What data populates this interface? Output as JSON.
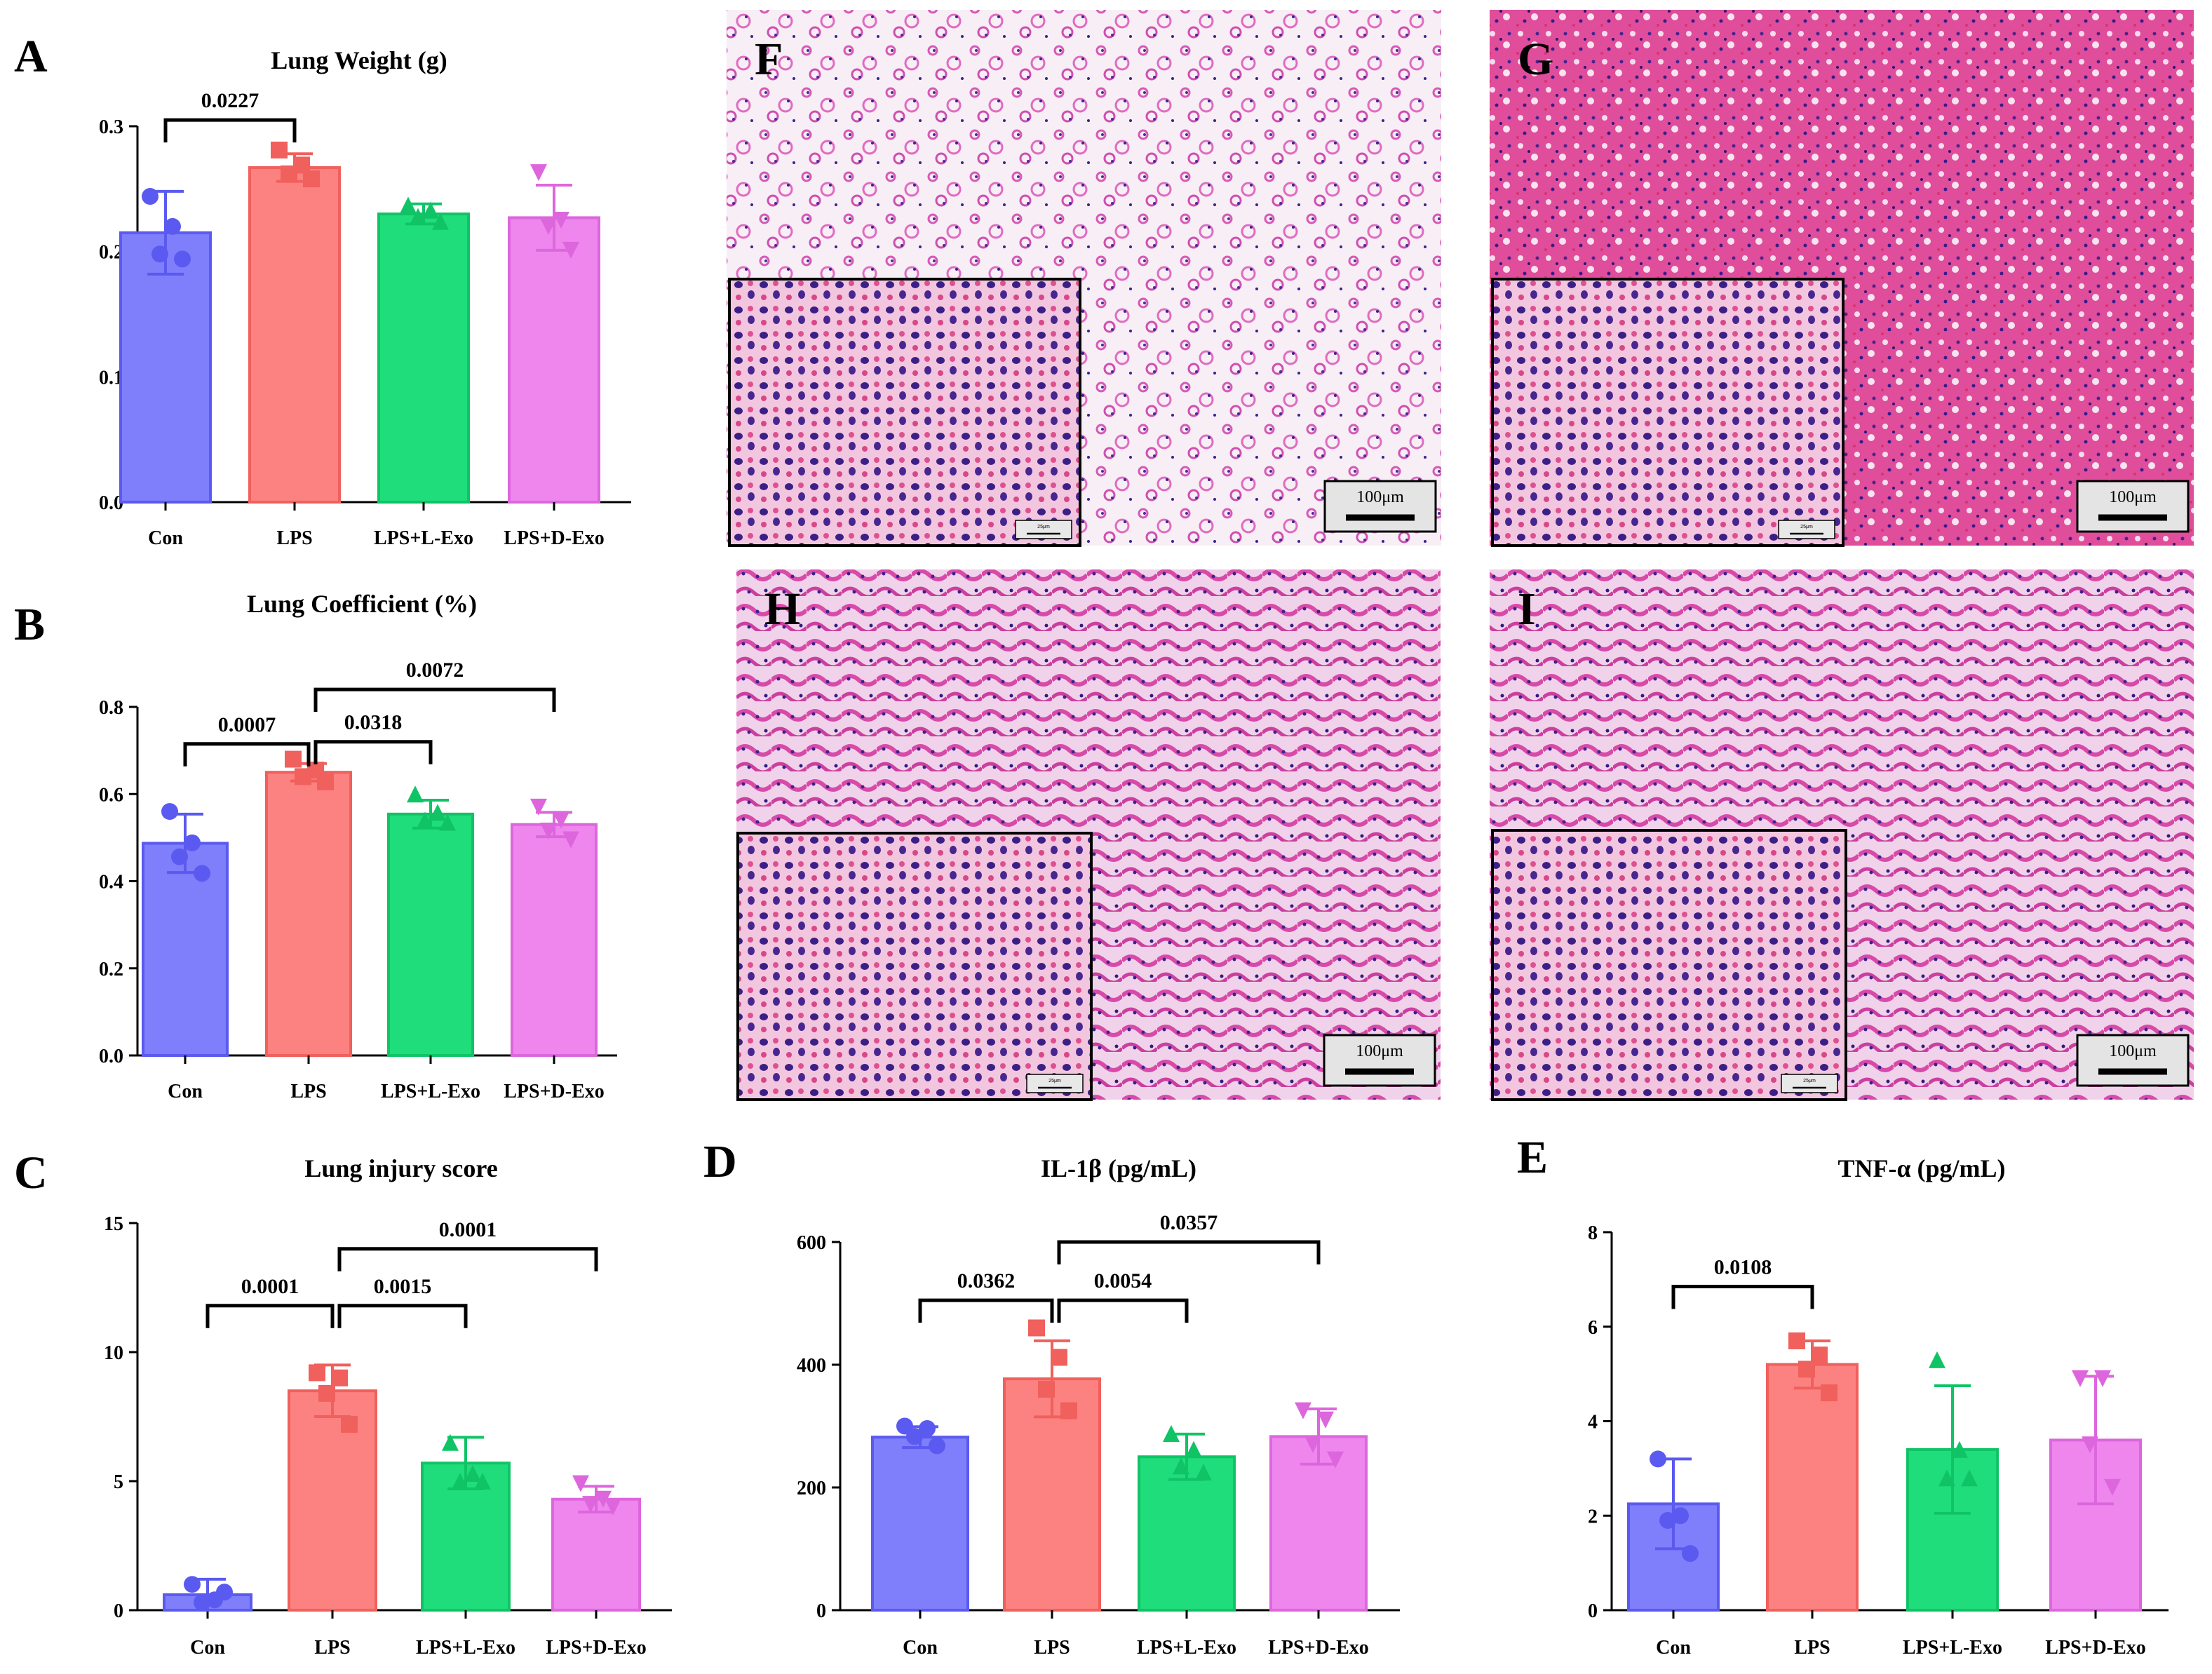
{
  "figure_labels": {
    "A": "A",
    "B": "B",
    "C": "C",
    "D": "D",
    "E": "E",
    "F": "F",
    "G": "G",
    "H": "H",
    "I": "I"
  },
  "colors": {
    "Con": {
      "fill": "#7f7ffb",
      "stroke": "#5a5af0"
    },
    "LPS": {
      "fill": "#fb8280",
      "stroke": "#f0605c"
    },
    "LPS+L-Exo": {
      "fill": "#20dd7c",
      "stroke": "#10c466"
    },
    "LPS+D-Exo": {
      "fill": "#ee86ee",
      "stroke": "#dd66dd"
    }
  },
  "micrographs": [
    {
      "label": "F",
      "scale_bar": "100μm",
      "inset_scale": "25μm",
      "tone": "light"
    },
    {
      "label": "G",
      "scale_bar": "100μm",
      "inset_scale": "25μm",
      "tone": "dense"
    },
    {
      "label": "H",
      "scale_bar": "100μm",
      "inset_scale": "25μm",
      "tone": "medium"
    },
    {
      "label": "I",
      "scale_bar": "100μm",
      "inset_scale": "25μm",
      "tone": "medium"
    }
  ],
  "chart_data": [
    {
      "id": "A",
      "type": "bar",
      "title": "Lung Weight (g)",
      "categories": [
        "Con",
        "LPS",
        "LPS+L-Exo",
        "LPS+D-Exo"
      ],
      "values": [
        0.215,
        0.267,
        0.23,
        0.227
      ],
      "sd": [
        0.033,
        0.011,
        0.008,
        0.026
      ],
      "points": [
        [
          0.244,
          0.22,
          0.198,
          0.194
        ],
        [
          0.281,
          0.269,
          0.262,
          0.258
        ],
        [
          0.237,
          0.233,
          0.228,
          0.224
        ],
        [
          0.263,
          0.225,
          0.22,
          0.201
        ]
      ],
      "markers": [
        "circle",
        "square",
        "triangle",
        "triangle-down"
      ],
      "ylim": [
        0,
        0.3
      ],
      "yticks": [
        "0.0",
        "0.1",
        "0.2",
        "0.3"
      ],
      "ytick_values": [
        0,
        0.1,
        0.2,
        0.3
      ],
      "significance": [
        {
          "from": 0,
          "to": 1,
          "label": "0.0227",
          "level": 0.305
        }
      ]
    },
    {
      "id": "B",
      "type": "bar",
      "title": "Lung Coefficient (%)",
      "categories": [
        "Con",
        "LPS",
        "LPS+L-Exo",
        "LPS+D-Exo"
      ],
      "values": [
        0.487,
        0.65,
        0.554,
        0.53
      ],
      "sd": [
        0.067,
        0.02,
        0.032,
        0.028
      ],
      "points": [
        [
          0.56,
          0.488,
          0.456,
          0.418
        ],
        [
          0.68,
          0.655,
          0.64,
          0.628
        ],
        [
          0.6,
          0.558,
          0.54,
          0.535
        ],
        [
          0.57,
          0.54,
          0.515,
          0.495
        ]
      ],
      "markers": [
        "circle",
        "square",
        "triangle",
        "triangle-down"
      ],
      "ylim": [
        0,
        0.8
      ],
      "yticks": [
        "0.0",
        "0.2",
        "0.4",
        "0.6",
        "0.8"
      ],
      "ytick_values": [
        0,
        0.2,
        0.4,
        0.6,
        0.8
      ],
      "significance": [
        {
          "from": 0,
          "to": 1,
          "label": "0.0007",
          "level": 0.715
        },
        {
          "from": 1,
          "to": 2,
          "label": "0.0318",
          "level": 0.72
        },
        {
          "from": 1,
          "to": 3,
          "label": "0.0072",
          "level": 0.84
        }
      ]
    },
    {
      "id": "C",
      "type": "bar",
      "title": "Lung injury score",
      "categories": [
        "Con",
        "LPS",
        "LPS+L-Exo",
        "LPS+D-Exo"
      ],
      "values": [
        0.6,
        8.5,
        5.7,
        4.3
      ],
      "sd": [
        0.6,
        1.0,
        1.0,
        0.5
      ],
      "points": [
        [
          1.0,
          0.4,
          0.3,
          0.7
        ],
        [
          9.2,
          9.0,
          8.4,
          7.2
        ],
        [
          6.5,
          5.3,
          5.0,
          5.0
        ],
        [
          4.9,
          4.3,
          4.1,
          4.0
        ]
      ],
      "markers": [
        "circle",
        "square",
        "triangle",
        "triangle-down"
      ],
      "ylim": [
        0,
        15
      ],
      "yticks": [
        "0",
        "5",
        "10",
        "15"
      ],
      "ytick_values": [
        0,
        5,
        10,
        15
      ],
      "significance": [
        {
          "from": 0,
          "to": 1,
          "label": "0.0001",
          "level": 11.8
        },
        {
          "from": 1,
          "to": 2,
          "label": "0.0015",
          "level": 11.8
        },
        {
          "from": 1,
          "to": 3,
          "label": "0.0001",
          "level": 14.0
        }
      ]
    },
    {
      "id": "D",
      "type": "bar",
      "title": "IL-1β (pg/mL)",
      "categories": [
        "Con",
        "LPS",
        "LPS+L-Exo",
        "LPS+D-Exo"
      ],
      "values": [
        282,
        377,
        250,
        283
      ],
      "sd": [
        17,
        62,
        37,
        45
      ],
      "points": [
        [
          300,
          296,
          283,
          268
        ],
        [
          460,
          412,
          360,
          325
        ],
        [
          288,
          262,
          235,
          225
        ],
        [
          325,
          310,
          270,
          245
        ]
      ],
      "markers": [
        "circle",
        "square",
        "triangle",
        "triangle-down"
      ],
      "ylim": [
        0,
        600
      ],
      "yticks": [
        "0",
        "200",
        "400",
        "600"
      ],
      "ytick_values": [
        0,
        200,
        400,
        600
      ],
      "significance": [
        {
          "from": 0,
          "to": 1,
          "label": "0.0362",
          "level": 505
        },
        {
          "from": 1,
          "to": 2,
          "label": "0.0054",
          "level": 505
        },
        {
          "from": 1,
          "to": 3,
          "label": "0.0357",
          "level": 600
        }
      ]
    },
    {
      "id": "E",
      "type": "bar",
      "title": "TNF-α (pg/mL)",
      "categories": [
        "Con",
        "LPS",
        "LPS+L-Exo",
        "LPS+D-Exo"
      ],
      "values": [
        2.25,
        5.2,
        3.4,
        3.6
      ],
      "sd": [
        0.95,
        0.5,
        1.35,
        1.35
      ],
      "points": [
        [
          3.2,
          2.0,
          1.9,
          1.2
        ],
        [
          5.7,
          5.4,
          5.1,
          4.6
        ],
        [
          5.3,
          3.4,
          2.8,
          2.8
        ],
        [
          4.9,
          4.9,
          3.5,
          2.6
        ]
      ],
      "markers": [
        "circle",
        "square",
        "triangle",
        "triangle-down"
      ],
      "ylim": [
        0,
        8
      ],
      "yticks": [
        "0",
        "2",
        "4",
        "6",
        "8"
      ],
      "ytick_values": [
        0,
        2,
        4,
        6,
        8
      ],
      "significance": [
        {
          "from": 0,
          "to": 1,
          "label": "0.0108",
          "level": 6.85
        }
      ]
    }
  ]
}
